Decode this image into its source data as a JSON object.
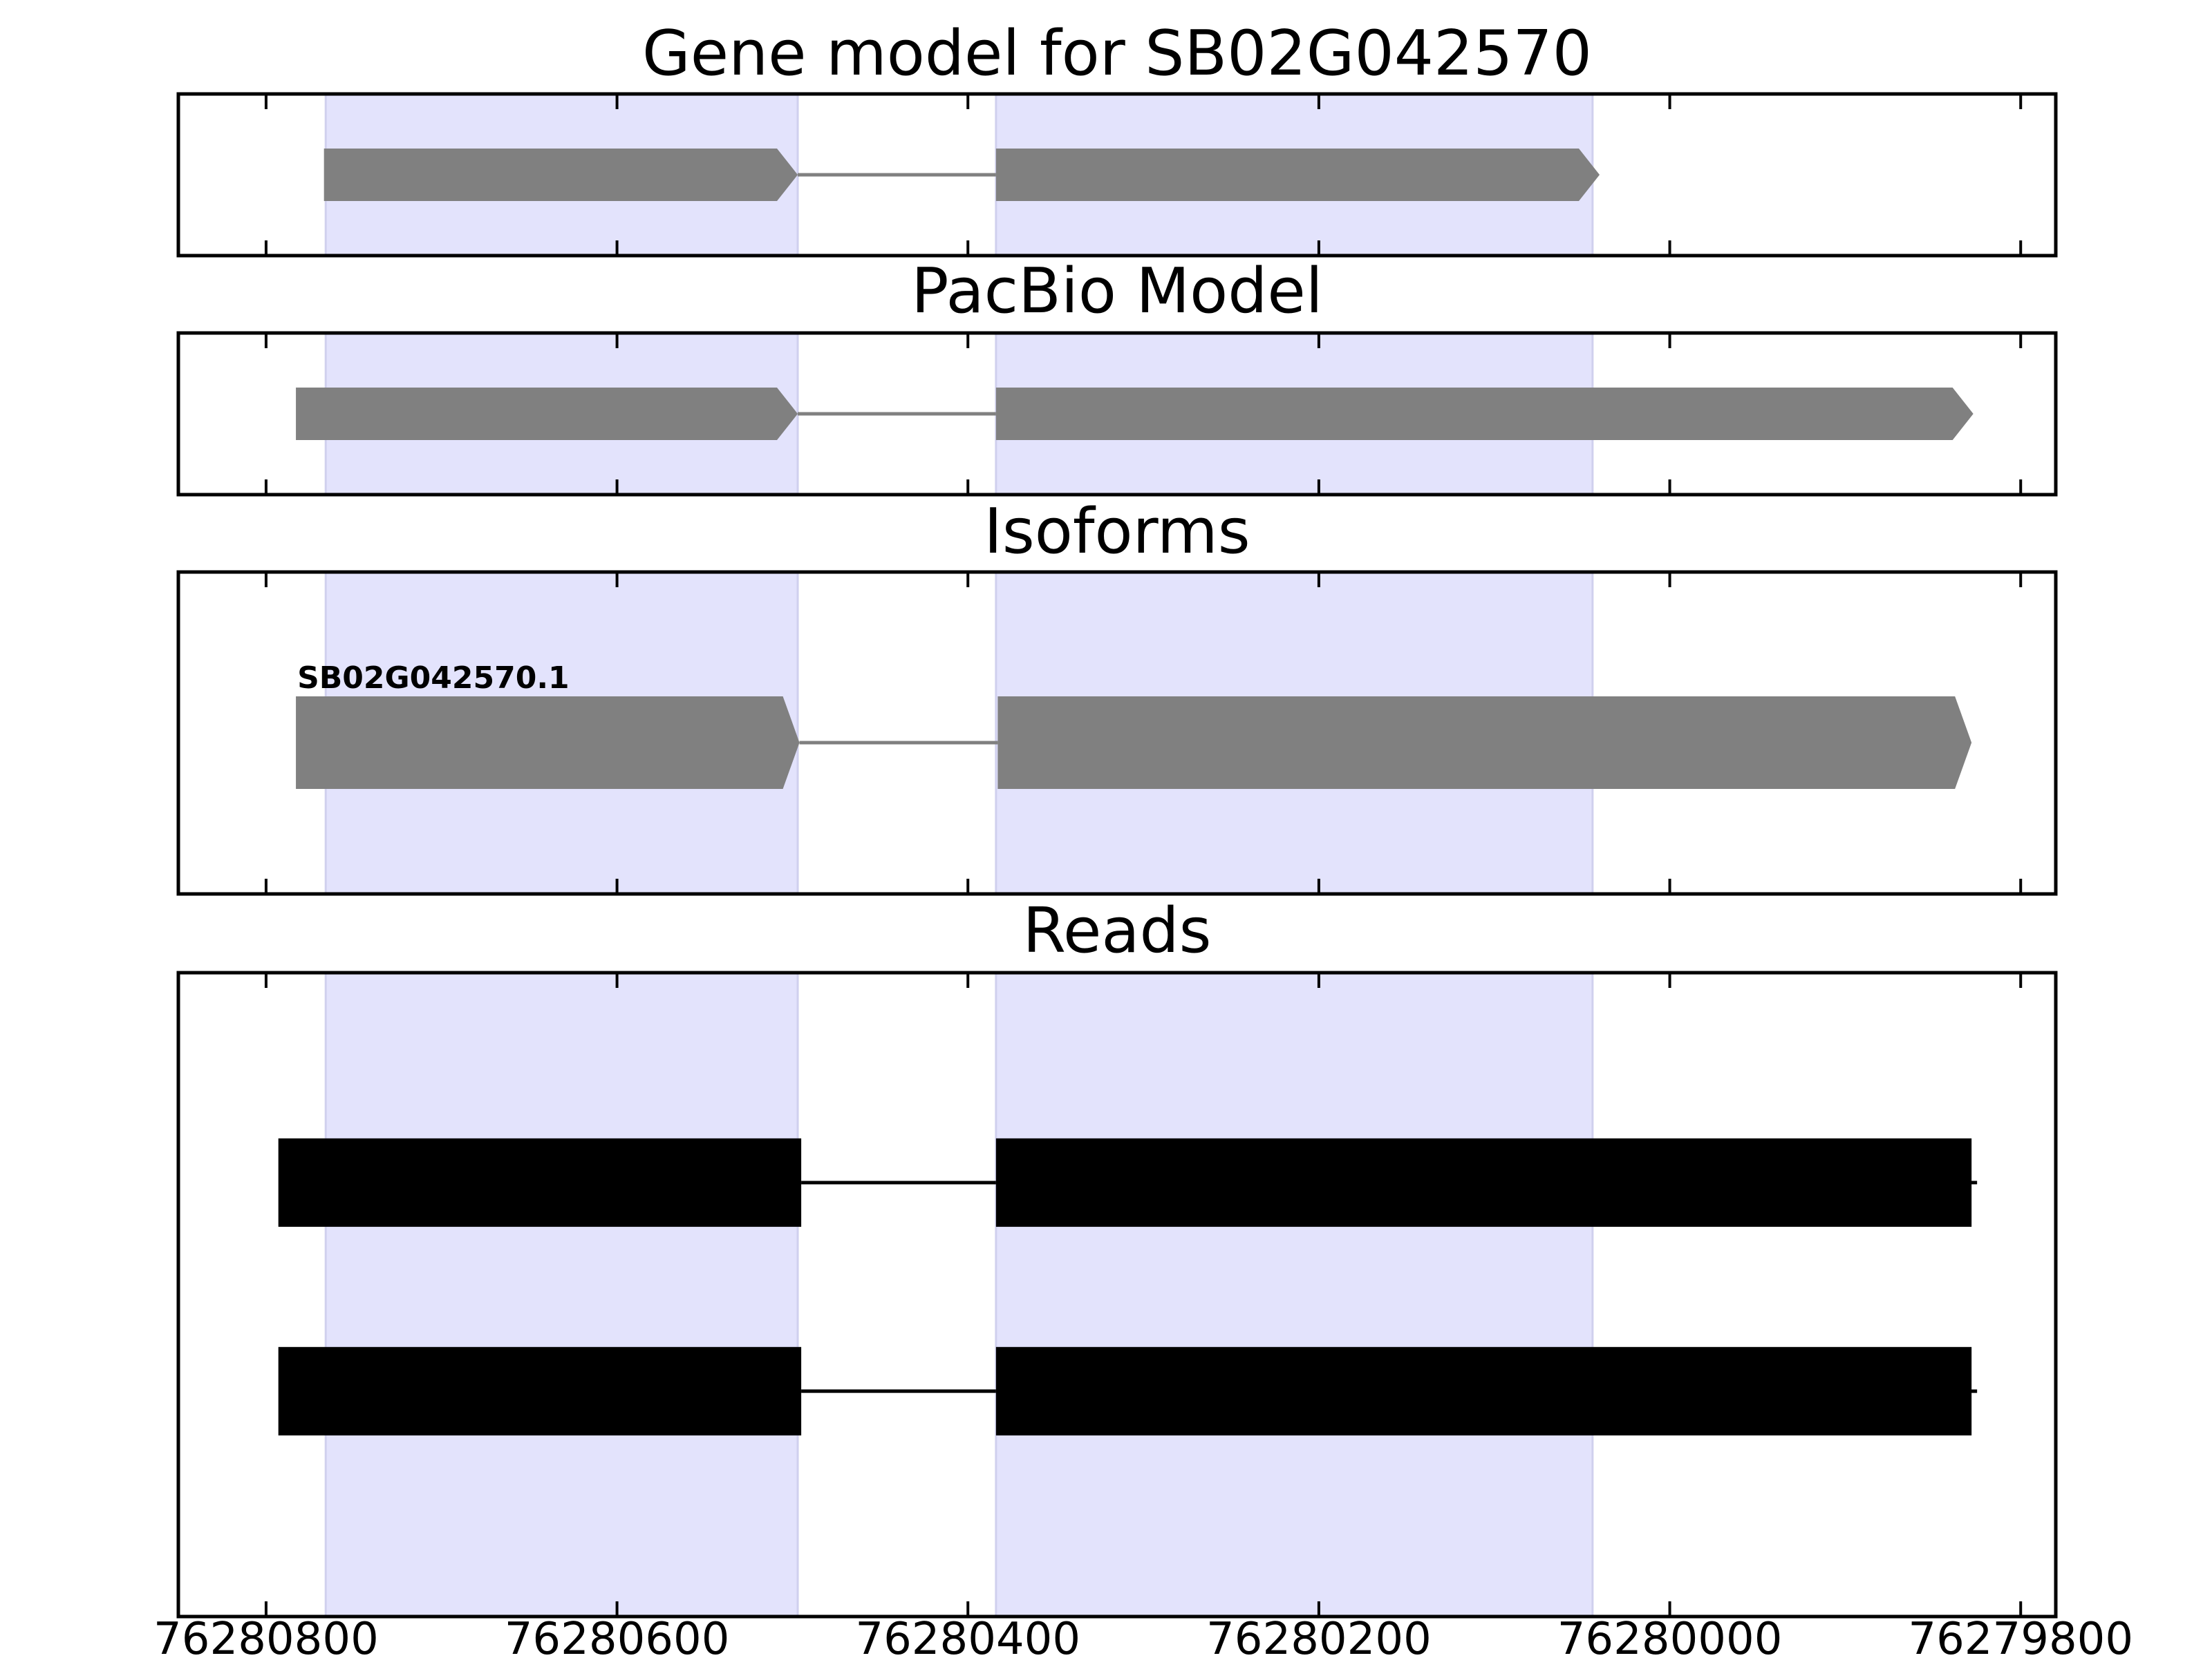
{
  "chart_data": {
    "type": "gene-track",
    "x_axis": {
      "reversed": true,
      "xlim": [
        76280850,
        76279780
      ],
      "ticks": [
        76280800,
        76280600,
        76280400,
        76280200,
        76280000,
        76279800
      ],
      "tick_labels": [
        "76280800",
        "76280600",
        "76280400",
        "76280200",
        "76280000",
        "76279800"
      ]
    },
    "highlight_regions": [
      {
        "start": 76280766,
        "end": 76280497
      },
      {
        "start": 76280384,
        "end": 76280044
      }
    ],
    "highlight_color": "#e3e3fc",
    "panels": [
      {
        "title": "Gene model for SB02G042570",
        "style": "arrow",
        "color": "#808080",
        "rows": [
          {
            "label": "",
            "exons": [
              [
                76280767,
                76280497
              ],
              [
                76280384,
                76280040
              ]
            ]
          }
        ]
      },
      {
        "title": "PacBio Model",
        "style": "arrow",
        "color": "#808080",
        "rows": [
          {
            "label": "",
            "exons": [
              [
                76280783,
                76280497
              ],
              [
                76280384,
                76279827
              ]
            ]
          }
        ]
      },
      {
        "title": "Isoforms",
        "style": "arrow",
        "color": "#808080",
        "rows": [
          {
            "label": "SB02G042570.1",
            "exons": [
              [
                76280783,
                76280496
              ],
              [
                76280383,
                76279828
              ]
            ]
          }
        ]
      },
      {
        "title": "Reads",
        "style": "block",
        "color": "#000000",
        "rows": [
          {
            "label": "",
            "exons": [
              [
                76280793,
                76280495
              ],
              [
                76280384,
                76279828
              ]
            ]
          },
          {
            "label": "",
            "exons": [
              [
                76280793,
                76280495
              ],
              [
                76280384,
                76279828
              ]
            ]
          }
        ]
      }
    ]
  }
}
